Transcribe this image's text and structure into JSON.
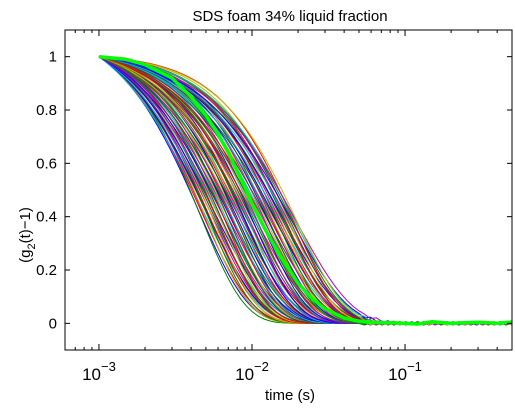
{
  "chart_data": {
    "type": "line",
    "title": "SDS foam 34% liquid fraction",
    "xlabel": "time (s)",
    "ylabel_parts": [
      "(g",
      "2",
      "(t)−1)"
    ],
    "xscale": "log",
    "xlim": [
      0.0006,
      0.5
    ],
    "ylim": [
      -0.1,
      1.1
    ],
    "xticks": [
      {
        "value": 0.001,
        "base": "10",
        "exp": "−3"
      },
      {
        "value": 0.01,
        "base": "10",
        "exp": "−2"
      },
      {
        "value": 0.1,
        "base": "10",
        "exp": "−1"
      }
    ],
    "yticks": [
      {
        "value": 0,
        "label": "0"
      },
      {
        "value": 0.2,
        "label": "0.2"
      },
      {
        "value": 0.4,
        "label": "0.4"
      },
      {
        "value": 0.6,
        "label": "0.6"
      },
      {
        "value": 0.8,
        "label": "0.8"
      },
      {
        "value": 1,
        "label": "1"
      }
    ],
    "bundle": {
      "count": 90,
      "tau_range_s": [
        0.0045,
        0.02
      ],
      "colors": [
        "#0000ff",
        "#008000",
        "#ff0000",
        "#00bfbf",
        "#bf00bf",
        "#bfbf00",
        "#404040"
      ]
    },
    "highlight": {
      "color": "#00ff00",
      "x": [
        0.001,
        0.0015,
        0.002,
        0.003,
        0.004,
        0.005,
        0.006,
        0.007,
        0.008,
        0.009,
        0.01,
        0.012,
        0.015,
        0.02,
        0.025,
        0.03,
        0.04,
        0.05,
        0.06,
        0.08,
        0.1,
        0.12,
        0.15,
        0.2,
        0.3,
        0.4,
        0.5
      ],
      "y": [
        1.0,
        0.99,
        0.97,
        0.92,
        0.85,
        0.78,
        0.71,
        0.64,
        0.57,
        0.51,
        0.45,
        0.36,
        0.26,
        0.15,
        0.09,
        0.055,
        0.02,
        0.008,
        0.003,
        0.002,
        0.0,
        -0.003,
        0.006,
        0.0,
        0.004,
        0.0,
        0.005
      ]
    }
  }
}
